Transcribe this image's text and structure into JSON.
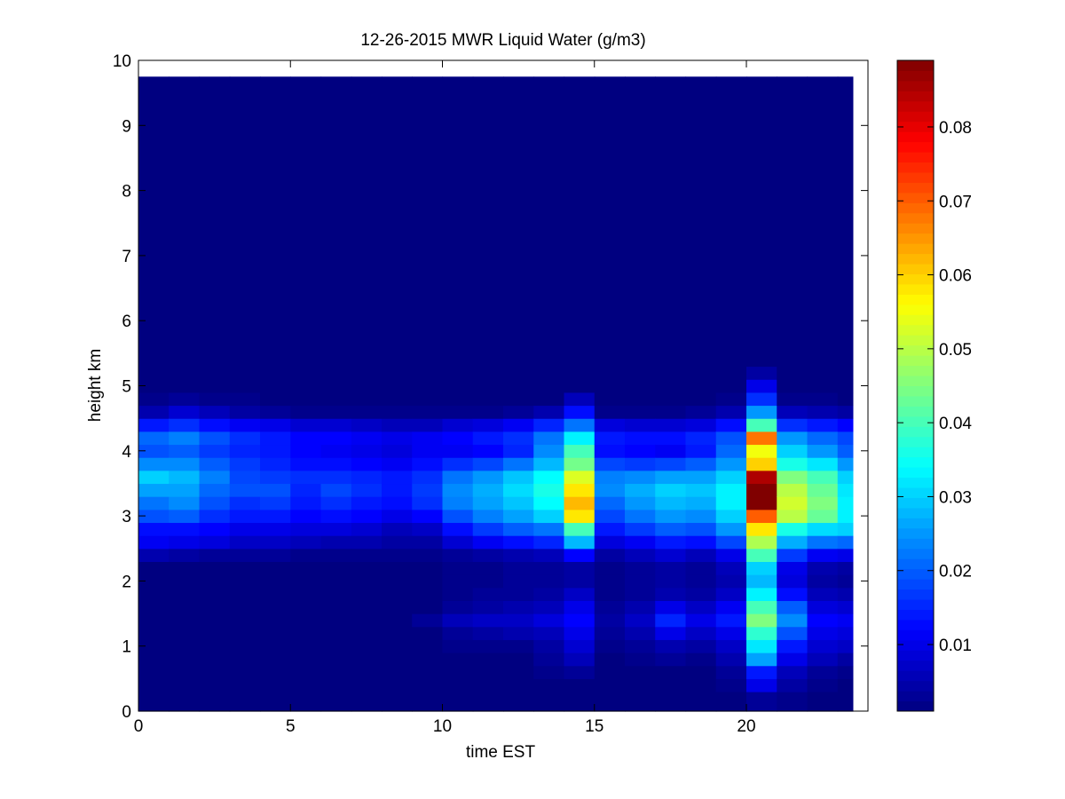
{
  "colors": {
    "background": "#ffffff",
    "axes_face": "#ffffff",
    "axis_line": "#000000",
    "colormap": "jet"
  },
  "chart_data": {
    "type": "heatmap",
    "title": "12-26-2015 MWR Liquid Water (g/m3)",
    "xlabel": "time EST",
    "ylabel": "height km",
    "xlim": [
      0,
      24
    ],
    "ylim": [
      0,
      10
    ],
    "xticks": [
      0,
      5,
      10,
      15,
      20
    ],
    "yticks": [
      0,
      1,
      2,
      3,
      4,
      5,
      6,
      7,
      8,
      9,
      10
    ],
    "colorbar": {
      "colormap": "jet",
      "clim": [
        0.001,
        0.089
      ],
      "ticks": [
        0.01,
        0.02,
        0.03,
        0.04,
        0.05,
        0.06,
        0.07,
        0.08
      ],
      "tick_labels": [
        "0.01",
        "0.02",
        "0.03",
        "0.04",
        "0.05",
        "0.06",
        "0.07",
        "0.08"
      ]
    },
    "x_edges": [
      0,
      1,
      2,
      3,
      4,
      5,
      6,
      7,
      8,
      9,
      10,
      11,
      12,
      13,
      14,
      15,
      16,
      17,
      18,
      19,
      20,
      21,
      22,
      23,
      23.5
    ],
    "y_edges": [
      0,
      0.3,
      0.5,
      0.7,
      0.9,
      1.1,
      1.3,
      1.5,
      1.7,
      1.9,
      2.1,
      2.3,
      2.5,
      2.7,
      2.9,
      3.1,
      3.3,
      3.5,
      3.7,
      3.9,
      4.1,
      4.3,
      4.5,
      4.7,
      4.9,
      5.1,
      5.3,
      9.75
    ],
    "x_centers": [
      0.5,
      1.5,
      2.5,
      3.5,
      4.5,
      5.5,
      6.5,
      7.5,
      8.5,
      9.5,
      10.5,
      11.5,
      12.5,
      13.5,
      14.5,
      15.5,
      16.5,
      17.5,
      18.5,
      19.5,
      20.5,
      21.5,
      22.5,
      23.25
    ],
    "y_centers": [
      0.15,
      0.4,
      0.6,
      0.8,
      1.0,
      1.2,
      1.4,
      1.6,
      1.8,
      2.0,
      2.2,
      2.4,
      2.6,
      2.8,
      3.0,
      3.2,
      3.4,
      3.6,
      3.8,
      4.0,
      4.2,
      4.4,
      4.6,
      4.8,
      5.0,
      5.2,
      7.5
    ],
    "z_profiles": {
      "p0": [
        0.001,
        0.001,
        0.001,
        0.001,
        0.001,
        0.001,
        0.001,
        0.001,
        0.001,
        0.001,
        0.001,
        0.005,
        0.011,
        0.013,
        0.019,
        0.022,
        0.026,
        0.03,
        0.024,
        0.019,
        0.021,
        0.014,
        0.005,
        0.002,
        0.001,
        0.001,
        0.001
      ],
      "p1": [
        0.001,
        0.001,
        0.001,
        0.001,
        0.001,
        0.001,
        0.001,
        0.001,
        0.001,
        0.001,
        0.001,
        0.004,
        0.01,
        0.013,
        0.02,
        0.024,
        0.026,
        0.028,
        0.024,
        0.02,
        0.023,
        0.016,
        0.008,
        0.003,
        0.001,
        0.001,
        0.001
      ],
      "p2": [
        0.001,
        0.001,
        0.001,
        0.001,
        0.001,
        0.001,
        0.001,
        0.001,
        0.001,
        0.001,
        0.001,
        0.003,
        0.009,
        0.012,
        0.016,
        0.019,
        0.021,
        0.023,
        0.02,
        0.017,
        0.019,
        0.013,
        0.006,
        0.002,
        0.001,
        0.001,
        0.001
      ],
      "p3": [
        0.001,
        0.001,
        0.001,
        0.001,
        0.001,
        0.001,
        0.001,
        0.001,
        0.001,
        0.001,
        0.001,
        0.003,
        0.007,
        0.01,
        0.014,
        0.016,
        0.019,
        0.018,
        0.017,
        0.015,
        0.016,
        0.011,
        0.004,
        0.002,
        0.001,
        0.001,
        0.001
      ],
      "p4": [
        0.001,
        0.001,
        0.001,
        0.001,
        0.001,
        0.001,
        0.001,
        0.001,
        0.001,
        0.001,
        0.001,
        0.003,
        0.007,
        0.01,
        0.014,
        0.017,
        0.019,
        0.017,
        0.015,
        0.014,
        0.014,
        0.01,
        0.003,
        0.001,
        0.001,
        0.001,
        0.001
      ],
      "p5": [
        0.001,
        0.001,
        0.001,
        0.001,
        0.001,
        0.001,
        0.001,
        0.001,
        0.001,
        0.001,
        0.001,
        0.002,
        0.006,
        0.009,
        0.012,
        0.014,
        0.015,
        0.016,
        0.013,
        0.012,
        0.012,
        0.008,
        0.002,
        0.001,
        0.001,
        0.001,
        0.001
      ],
      "p6": [
        0.001,
        0.001,
        0.001,
        0.001,
        0.001,
        0.001,
        0.001,
        0.001,
        0.001,
        0.001,
        0.001,
        0.002,
        0.005,
        0.009,
        0.013,
        0.016,
        0.018,
        0.016,
        0.013,
        0.011,
        0.012,
        0.008,
        0.002,
        0.001,
        0.001,
        0.001,
        0.001
      ],
      "p7": [
        0.001,
        0.001,
        0.001,
        0.001,
        0.001,
        0.001,
        0.001,
        0.001,
        0.001,
        0.001,
        0.001,
        0.002,
        0.005,
        0.008,
        0.012,
        0.014,
        0.016,
        0.015,
        0.012,
        0.01,
        0.011,
        0.007,
        0.002,
        0.001,
        0.001,
        0.001,
        0.001
      ],
      "p8": [
        0.001,
        0.001,
        0.001,
        0.001,
        0.001,
        0.001,
        0.001,
        0.001,
        0.001,
        0.001,
        0.001,
        0.002,
        0.004,
        0.006,
        0.01,
        0.013,
        0.014,
        0.014,
        0.011,
        0.009,
        0.01,
        0.006,
        0.002,
        0.001,
        0.001,
        0.001,
        0.001
      ],
      "p9": [
        0.001,
        0.001,
        0.001,
        0.001,
        0.001,
        0.001,
        0.003,
        0.001,
        0.001,
        0.001,
        0.001,
        0.002,
        0.004,
        0.007,
        0.012,
        0.016,
        0.017,
        0.016,
        0.013,
        0.011,
        0.011,
        0.006,
        0.002,
        0.001,
        0.001,
        0.001,
        0.001
      ],
      "p10": [
        0.001,
        0.001,
        0.001,
        0.001,
        0.002,
        0.003,
        0.006,
        0.003,
        0.002,
        0.002,
        0.002,
        0.003,
        0.008,
        0.013,
        0.019,
        0.023,
        0.024,
        0.022,
        0.016,
        0.011,
        0.012,
        0.008,
        0.002,
        0.001,
        0.001,
        0.001,
        0.001
      ],
      "p11": [
        0.001,
        0.001,
        0.001,
        0.001,
        0.002,
        0.004,
        0.007,
        0.004,
        0.003,
        0.002,
        0.002,
        0.004,
        0.011,
        0.017,
        0.023,
        0.026,
        0.027,
        0.025,
        0.018,
        0.012,
        0.014,
        0.009,
        0.002,
        0.001,
        0.001,
        0.001,
        0.001
      ],
      "p12": [
        0.001,
        0.001,
        0.001,
        0.001,
        0.002,
        0.005,
        0.007,
        0.005,
        0.003,
        0.003,
        0.003,
        0.005,
        0.013,
        0.02,
        0.026,
        0.029,
        0.031,
        0.029,
        0.022,
        0.015,
        0.016,
        0.011,
        0.003,
        0.001,
        0.001,
        0.001,
        0.001
      ],
      "p13": [
        0.001,
        0.001,
        0.002,
        0.003,
        0.004,
        0.006,
        0.009,
        0.006,
        0.004,
        0.003,
        0.003,
        0.006,
        0.015,
        0.022,
        0.03,
        0.034,
        0.036,
        0.034,
        0.028,
        0.024,
        0.022,
        0.015,
        0.005,
        0.001,
        0.001,
        0.001,
        0.001
      ],
      "p14": [
        0.001,
        0.001,
        0.003,
        0.006,
        0.008,
        0.01,
        0.012,
        0.01,
        0.007,
        0.004,
        0.004,
        0.012,
        0.028,
        0.04,
        0.058,
        0.062,
        0.058,
        0.053,
        0.044,
        0.04,
        0.033,
        0.022,
        0.013,
        0.006,
        0.001,
        0.001,
        0.001
      ],
      "p15": [
        0.001,
        0.001,
        0.001,
        0.001,
        0.002,
        0.003,
        0.004,
        0.003,
        0.002,
        0.002,
        0.002,
        0.004,
        0.009,
        0.014,
        0.018,
        0.021,
        0.024,
        0.023,
        0.018,
        0.013,
        0.014,
        0.009,
        0.002,
        0.001,
        0.001,
        0.001,
        0.001
      ],
      "p16": [
        0.001,
        0.001,
        0.001,
        0.002,
        0.003,
        0.005,
        0.007,
        0.005,
        0.003,
        0.003,
        0.003,
        0.006,
        0.011,
        0.017,
        0.022,
        0.025,
        0.027,
        0.024,
        0.017,
        0.012,
        0.013,
        0.008,
        0.002,
        0.001,
        0.001,
        0.001,
        0.001
      ],
      "p17": [
        0.001,
        0.001,
        0.001,
        0.003,
        0.005,
        0.01,
        0.015,
        0.01,
        0.005,
        0.004,
        0.004,
        0.008,
        0.014,
        0.02,
        0.025,
        0.028,
        0.03,
        0.026,
        0.018,
        0.011,
        0.013,
        0.008,
        0.002,
        0.001,
        0.001,
        0.001,
        0.001
      ],
      "p18": [
        0.001,
        0.001,
        0.001,
        0.002,
        0.004,
        0.007,
        0.01,
        0.007,
        0.004,
        0.003,
        0.003,
        0.006,
        0.013,
        0.019,
        0.024,
        0.027,
        0.029,
        0.026,
        0.02,
        0.014,
        0.015,
        0.009,
        0.003,
        0.001,
        0.001,
        0.001,
        0.001
      ],
      "p19": [
        0.001,
        0.002,
        0.003,
        0.005,
        0.007,
        0.01,
        0.014,
        0.011,
        0.007,
        0.005,
        0.006,
        0.01,
        0.018,
        0.025,
        0.03,
        0.033,
        0.033,
        0.03,
        0.025,
        0.021,
        0.019,
        0.013,
        0.005,
        0.002,
        0.001,
        0.001,
        0.001
      ],
      "p20": [
        0.003,
        0.01,
        0.014,
        0.026,
        0.032,
        0.038,
        0.045,
        0.04,
        0.033,
        0.028,
        0.03,
        0.04,
        0.049,
        0.058,
        0.07,
        0.089,
        0.089,
        0.085,
        0.06,
        0.055,
        0.068,
        0.04,
        0.025,
        0.016,
        0.01,
        0.004,
        0.001
      ],
      "p21": [
        0.002,
        0.004,
        0.006,
        0.01,
        0.014,
        0.019,
        0.024,
        0.02,
        0.013,
        0.009,
        0.01,
        0.017,
        0.027,
        0.036,
        0.05,
        0.052,
        0.05,
        0.045,
        0.036,
        0.03,
        0.025,
        0.016,
        0.006,
        0.002,
        0.001,
        0.001,
        0.001
      ],
      "p22": [
        0.001,
        0.002,
        0.003,
        0.006,
        0.008,
        0.01,
        0.012,
        0.009,
        0.006,
        0.004,
        0.005,
        0.011,
        0.022,
        0.031,
        0.043,
        0.045,
        0.043,
        0.04,
        0.032,
        0.025,
        0.021,
        0.014,
        0.005,
        0.002,
        0.001,
        0.001,
        0.001
      ],
      "p23": [
        0.001,
        0.001,
        0.002,
        0.004,
        0.007,
        0.009,
        0.011,
        0.008,
        0.005,
        0.003,
        0.004,
        0.01,
        0.021,
        0.03,
        0.033,
        0.033,
        0.032,
        0.03,
        0.025,
        0.02,
        0.018,
        0.012,
        0.004,
        0.001,
        0.001,
        0.001,
        0.001
      ]
    },
    "z_columns": [
      "p0",
      "p1",
      "p2",
      "p3",
      "p4",
      "p5",
      "p6",
      "p7",
      "p8",
      "p9",
      "p10",
      "p11",
      "p12",
      "p13",
      "p14",
      "p15",
      "p16",
      "p17",
      "p18",
      "p19",
      "p20",
      "p21",
      "p22",
      "p23"
    ]
  }
}
